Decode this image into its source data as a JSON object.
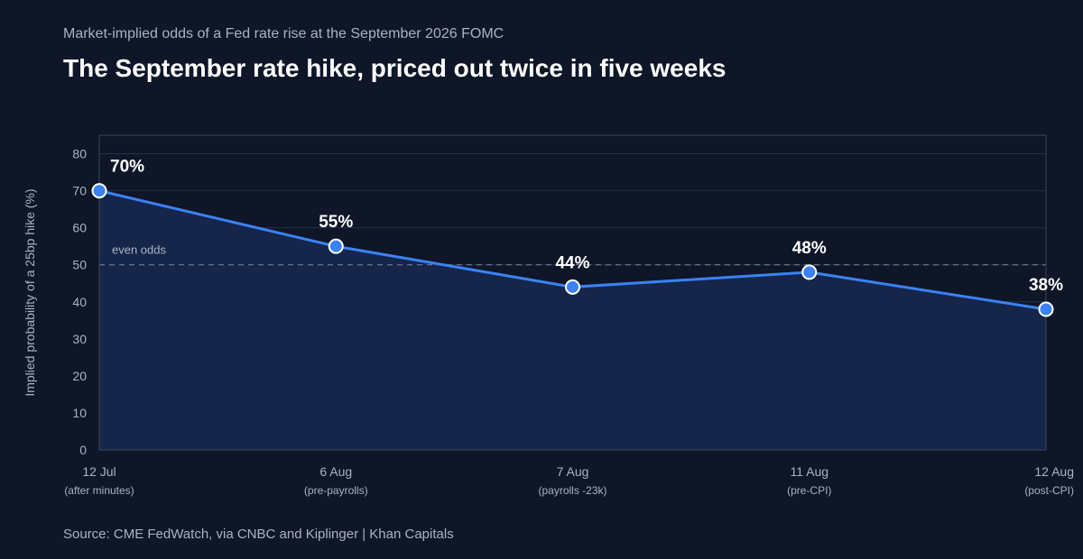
{
  "header": {
    "subtitle": "Market-implied odds of a Fed rate rise at the September 2026 FOMC",
    "title": "The September rate hike, priced out twice in five weeks"
  },
  "footer": {
    "source": "Source: CME FedWatch, via CNBC and Kiplinger  |  Khan Capitals"
  },
  "chart_data": {
    "type": "line",
    "title": "The September rate hike, priced out twice in five weeks",
    "subtitle": "Market-implied odds of a Fed rate rise at the September 2026 FOMC",
    "ylabel": "Implied probability of a 25bp hike (%)",
    "xlabel": "",
    "ylim": [
      0,
      85
    ],
    "yticks": [
      0,
      10,
      20,
      30,
      40,
      50,
      60,
      70,
      80
    ],
    "grid": true,
    "categories": [
      "12 Jul",
      "6 Aug",
      "7 Aug",
      "11 Aug",
      "12 Aug"
    ],
    "category_notes": [
      "(after minutes)",
      "(pre-payrolls)",
      "(payrolls -23k)",
      "(pre-CPI)",
      "(post-CPI)"
    ],
    "values": [
      70,
      55,
      44,
      48,
      38
    ],
    "data_labels": [
      "70%",
      "55%",
      "44%",
      "48%",
      "38%"
    ],
    "reference_line": {
      "value": 50,
      "label": "even odds"
    },
    "colors": {
      "line": "#3b82f6",
      "area": "#15264a",
      "background": "#0e1628",
      "grid": "#24314a",
      "reference": "#6f7c92",
      "axis_text": "#a9b3c4"
    }
  }
}
